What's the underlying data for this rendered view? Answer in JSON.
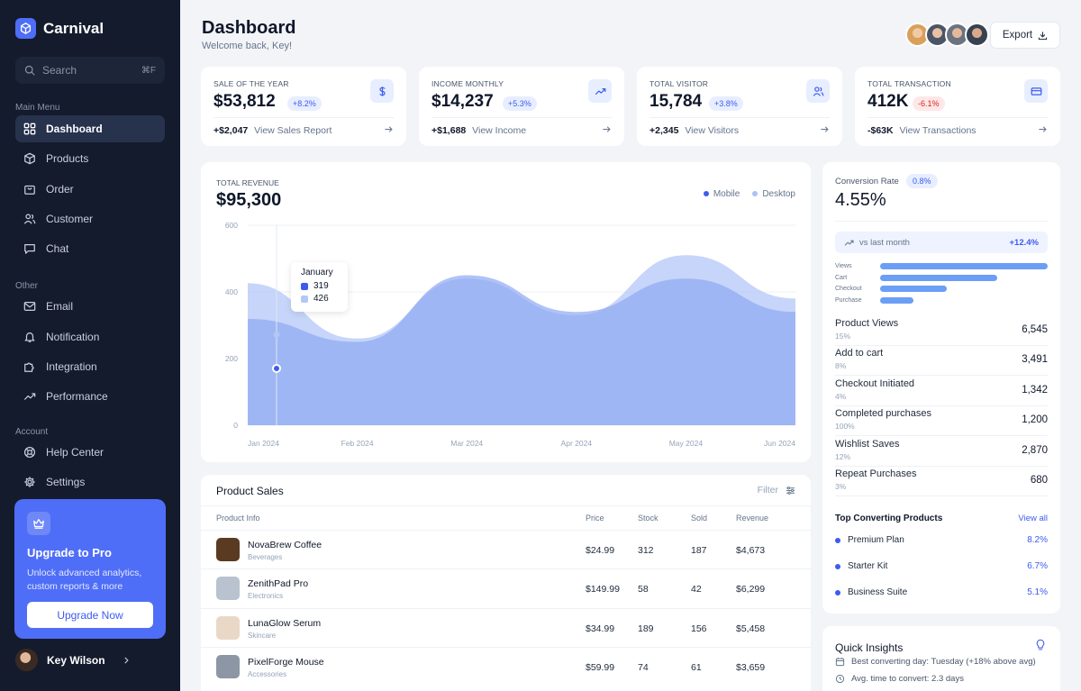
{
  "brand": {
    "name": "Carnival"
  },
  "search": {
    "placeholder": "Search",
    "shortcut": "⌘F"
  },
  "sidebar": {
    "main_label": "Main Menu",
    "main_items": [
      {
        "label": "Dashboard",
        "icon": "grid-icon"
      },
      {
        "label": "Products",
        "icon": "box-icon"
      },
      {
        "label": "Order",
        "icon": "bag-icon"
      },
      {
        "label": "Customer",
        "icon": "users-icon"
      },
      {
        "label": "Chat",
        "icon": "chat-icon"
      }
    ],
    "other_label": "Other",
    "other_items": [
      {
        "label": "Email",
        "icon": "mail-icon"
      },
      {
        "label": "Notification",
        "icon": "bell-icon"
      },
      {
        "label": "Integration",
        "icon": "puzzle-icon"
      },
      {
        "label": "Performance",
        "icon": "trend-icon"
      }
    ],
    "account_label": "Account",
    "account_items": [
      {
        "label": "Help Center",
        "icon": "lifebuoy-icon"
      },
      {
        "label": "Settings",
        "icon": "gear-icon"
      }
    ]
  },
  "promo": {
    "title": "Upgrade to Pro",
    "text": "Unlock advanced analytics, custom reports & more",
    "button": "Upgrade Now"
  },
  "user": {
    "name": "Key Wilson"
  },
  "header": {
    "title": "Dashboard",
    "subtitle": "Welcome back, Key!",
    "export_label": "Export"
  },
  "stats": [
    {
      "label": "SALE OF THE YEAR",
      "value": "$53,812",
      "badge": "+8.2%",
      "badge_type": "up",
      "icon": "dollar-icon",
      "foot_value": "+$2,047",
      "foot_link": "View Sales Report"
    },
    {
      "label": "INCOME MONTHLY",
      "value": "$14,237",
      "badge": "+5.3%",
      "badge_type": "up",
      "icon": "trend-icon",
      "foot_value": "+$1,688",
      "foot_link": "View Income"
    },
    {
      "label": "TOTAL VISITOR",
      "value": "15,784",
      "badge": "+3.8%",
      "badge_type": "up",
      "icon": "users-icon",
      "foot_value": "+2,345",
      "foot_link": "View Visitors"
    },
    {
      "label": "TOTAL TRANSACTION",
      "value": "412K",
      "badge": "-6.1%",
      "badge_type": "down",
      "icon": "card-icon",
      "foot_value": "-$63K",
      "foot_link": "View Transactions"
    }
  ],
  "revenue": {
    "label": "TOTAL REVENUE",
    "value": "$95,300",
    "legend": [
      {
        "name": "Mobile",
        "color": "#3d5bf0"
      },
      {
        "name": "Desktop",
        "color": "#a9c2f2"
      }
    ],
    "tooltip": {
      "month": "January",
      "mobile": "319",
      "desktop": "426"
    }
  },
  "chart_data": {
    "type": "area",
    "x": [
      "Jan 2024",
      "Feb 2024",
      "Mar 2024",
      "Apr 2024",
      "May 2024",
      "Jun 2024"
    ],
    "yticks": [
      0,
      200,
      400,
      600
    ],
    "ylim": [
      0,
      600
    ],
    "grid": true,
    "legend_position": "top-right",
    "series": [
      {
        "name": "Desktop",
        "color": "#b3c7f7",
        "values": [
          426,
          260,
          440,
          330,
          510,
          380
        ]
      },
      {
        "name": "Mobile",
        "color": "#8ea8f4",
        "values": [
          319,
          250,
          450,
          340,
          440,
          340
        ]
      }
    ]
  },
  "conversion": {
    "label": "Conversion Rate",
    "badge": "0.8%",
    "value": "4.55%",
    "vs_label": "vs last month",
    "vs_value": "+12.4%",
    "funnel": [
      {
        "label": "Views",
        "pct": 100
      },
      {
        "label": "Cart",
        "pct": 70
      },
      {
        "label": "Checkout",
        "pct": 40
      },
      {
        "label": "Purchase",
        "pct": 20
      }
    ],
    "metrics": [
      {
        "name": "Product Views",
        "pct": "15%",
        "value": "6,545"
      },
      {
        "name": "Add to cart",
        "pct": "8%",
        "value": "3,491"
      },
      {
        "name": "Checkout Initiated",
        "pct": "4%",
        "value": "1,342"
      },
      {
        "name": "Completed purchases",
        "pct": "100%",
        "value": "1,200"
      },
      {
        "name": "Wishlist Saves",
        "pct": "12%",
        "value": "2,870"
      },
      {
        "name": "Repeat Purchases",
        "pct": "3%",
        "value": "680"
      }
    ],
    "top_title": "Top Converting Products",
    "view_all": "View all",
    "top_products": [
      {
        "name": "Premium Plan",
        "pct": "8.2%"
      },
      {
        "name": "Starter Kit",
        "pct": "6.7%"
      },
      {
        "name": "Business Suite",
        "pct": "5.1%"
      }
    ]
  },
  "insights": {
    "title": "Quick Insights",
    "items": [
      {
        "text": "Best converting day: Tuesday (+18% above avg)",
        "icon": "calendar-icon"
      },
      {
        "text": "Avg. time to convert: 2.3 days",
        "icon": "clock-icon"
      }
    ]
  },
  "product_sales": {
    "title": "Product Sales",
    "filter": "Filter",
    "columns": [
      "Product Info",
      "Price",
      "Stock",
      "Sold",
      "Revenue"
    ],
    "rows": [
      {
        "name": "NovaBrew Coffee",
        "category": "Beverages",
        "price": "$24.99",
        "stock": "312",
        "sold": "187",
        "revenue": "$4,673",
        "thumb_color": "#5a3b22"
      },
      {
        "name": "ZenithPad Pro",
        "category": "Electronics",
        "price": "$149.99",
        "stock": "58",
        "sold": "42",
        "revenue": "$6,299",
        "thumb_color": "#b8c3cf"
      },
      {
        "name": "LunaGlow Serum",
        "category": "Skincare",
        "price": "$34.99",
        "stock": "189",
        "sold": "156",
        "revenue": "$5,458",
        "thumb_color": "#ead8c6"
      },
      {
        "name": "PixelForge Mouse",
        "category": "Accessories",
        "price": "$59.99",
        "stock": "74",
        "sold": "61",
        "revenue": "$3,659",
        "thumb_color": "#8d96a4"
      }
    ]
  }
}
